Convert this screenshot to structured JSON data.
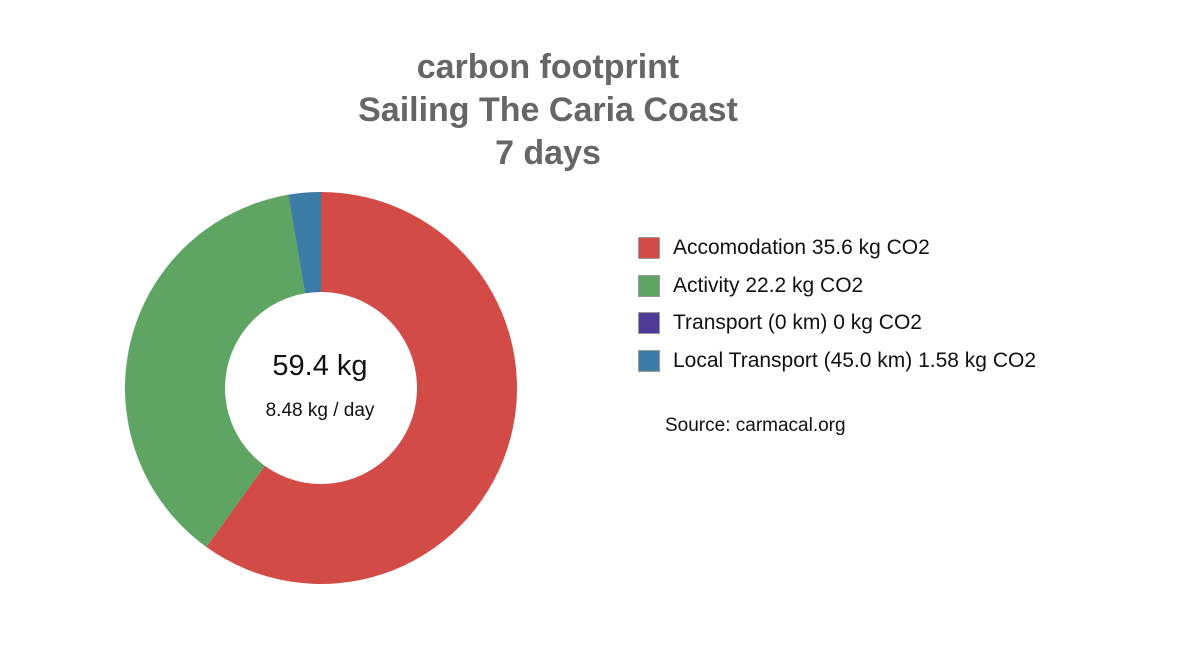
{
  "chart_data": {
    "type": "pie",
    "title_lines": [
      "carbon footprint",
      "Sailing The Caria Coast",
      "7 days"
    ],
    "center_text": "59.4 kg",
    "center_subtext": "8.48 kg / day",
    "legend_position": "right",
    "series": [
      {
        "name": "Accomodation",
        "label": "Accomodation 35.6 kg CO2",
        "value": 35.6,
        "color": "#d24b46"
      },
      {
        "name": "Activity",
        "label": "Activity 22.2 kg CO2",
        "value": 22.2,
        "color": "#5ea463"
      },
      {
        "name": "Transport (0 km)",
        "label": "Transport (0 km) 0 kg CO2",
        "value": 0,
        "color": "#4f3a98"
      },
      {
        "name": "Local Transport (45.0 km)",
        "label": "Local Transport (45.0 km) 1.58 kg CO2",
        "value": 1.58,
        "color": "#3c7ca6"
      }
    ],
    "source": "Source: carmacal.org"
  }
}
